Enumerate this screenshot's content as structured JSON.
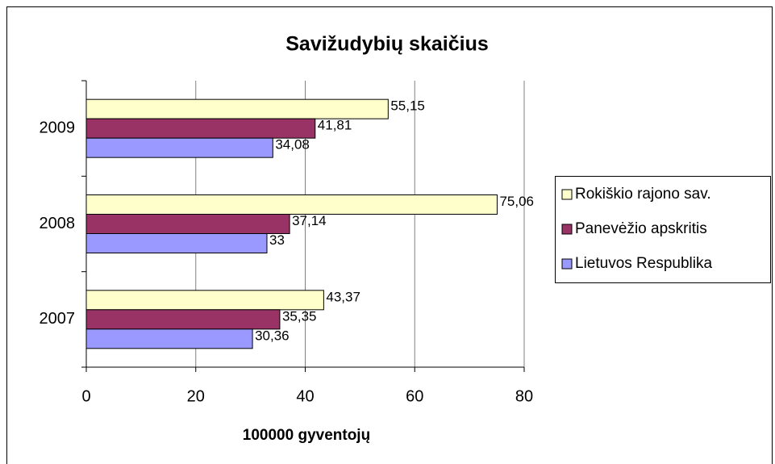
{
  "chart_data": {
    "type": "barh",
    "title": "Savižudybių skaičius",
    "x_label": "100000 gyventojų",
    "categories": [
      "2007",
      "2008",
      "2009"
    ],
    "series": [
      {
        "name": "Rokiškio rajono sav.",
        "color": "#ffffcc",
        "values": [
          43.37,
          75.06,
          55.15
        ],
        "value_labels": [
          "43,37",
          "75,06",
          "55,15"
        ]
      },
      {
        "name": "Panevėžio apskritis",
        "color": "#993366",
        "values": [
          35.35,
          37.14,
          41.81
        ],
        "value_labels": [
          "35,35",
          "37,14",
          "41,81"
        ]
      },
      {
        "name": "Lietuvos Respublika",
        "color": "#9999ff",
        "values": [
          30.36,
          33,
          34.08
        ],
        "value_labels": [
          "30,36",
          "33",
          "34,08"
        ]
      }
    ],
    "xlim": [
      0,
      80
    ],
    "xticks": [
      0,
      20,
      40,
      60,
      80
    ],
    "grid": true,
    "legend": "right"
  }
}
